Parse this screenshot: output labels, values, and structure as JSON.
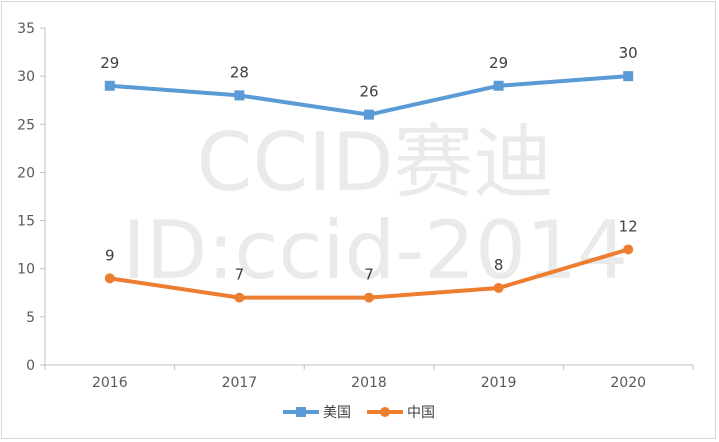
{
  "chart_data": {
    "type": "line",
    "categories": [
      "2016",
      "2017",
      "2018",
      "2019",
      "2020"
    ],
    "series": [
      {
        "name": "美国",
        "values": [
          29,
          28,
          26,
          29,
          30
        ],
        "color": "#5b9bd5",
        "marker": "square"
      },
      {
        "name": "中国",
        "values": [
          9,
          7,
          7,
          8,
          12
        ],
        "color": "#ed7d31",
        "marker": "circle"
      }
    ],
    "ylim": [
      0,
      35
    ],
    "yticks": [
      "0",
      "5",
      "10",
      "15",
      "20",
      "25",
      "30",
      "35"
    ],
    "grid": false,
    "legend": "bottom",
    "data_labels": true
  },
  "watermark": {
    "line1": "CCID赛迪",
    "line2": "ID:ccid-2014"
  }
}
